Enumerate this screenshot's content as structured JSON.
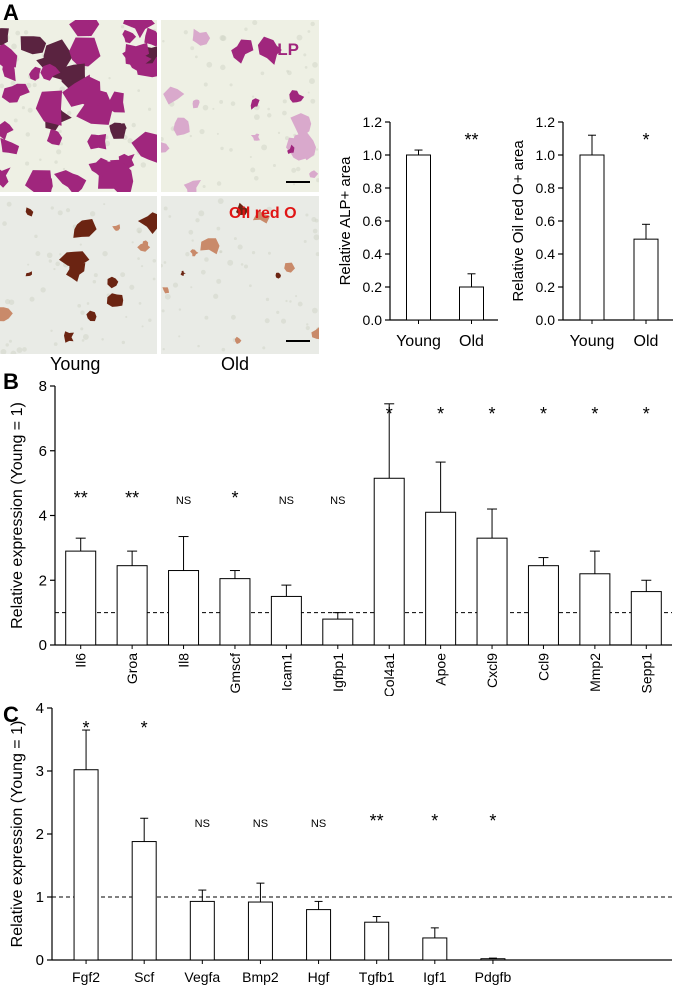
{
  "panel_labels": {
    "a": "A",
    "b": "B",
    "c": "C"
  },
  "micrographs": {
    "alp_label": "ALP",
    "oil_label": "Oil red O",
    "col_young": "Young",
    "col_old": "Old",
    "colors": {
      "alp_stain": "#a0267d",
      "alp_light": "#d9a9cc",
      "oil_stain": "#6b2412",
      "oil_light": "#c98a6a",
      "bg_alp": "#eef0e4",
      "bg_oil": "#e9ebe6",
      "alp_text": "#a0267d",
      "oil_text": "#e01515"
    }
  },
  "chart_data": [
    {
      "id": "alp",
      "type": "bar",
      "categories": [
        "Young",
        "Old"
      ],
      "values": [
        1.0,
        0.2
      ],
      "errors": [
        0.03,
        0.08
      ],
      "ylabel": "Relative ALP+ area",
      "ylim": [
        0,
        1.2
      ],
      "yticks": [
        "0.0",
        "0.2",
        "0.4",
        "0.6",
        "0.8",
        "1.0",
        "1.2"
      ],
      "annotations": [
        "",
        "**"
      ]
    },
    {
      "id": "oil",
      "type": "bar",
      "categories": [
        "Young",
        "Old"
      ],
      "values": [
        1.0,
        0.49
      ],
      "errors": [
        0.12,
        0.09
      ],
      "ylabel": "Relative Oil red O+ area",
      "ylim": [
        0,
        1.2
      ],
      "yticks": [
        "0.0",
        "0.2",
        "0.4",
        "0.6",
        "0.8",
        "1.0",
        "1.2"
      ],
      "annotations": [
        "",
        "*"
      ]
    },
    {
      "id": "b",
      "type": "bar",
      "categories": [
        "Il6",
        "Groa",
        "Il8",
        "Gmscf",
        "Icam1",
        "Igfbp1",
        "Col4a1",
        "Apoe",
        "Cxcl9",
        "Ccl9",
        "Mmp2",
        "Sepp1"
      ],
      "values": [
        2.9,
        2.45,
        2.3,
        2.05,
        1.5,
        0.8,
        5.15,
        4.1,
        3.3,
        2.45,
        2.2,
        1.65
      ],
      "errors": [
        0.4,
        0.45,
        1.05,
        0.25,
        0.35,
        0.2,
        2.3,
        1.55,
        0.9,
        0.25,
        0.7,
        0.35
      ],
      "annotations": [
        "**",
        "**",
        "NS",
        "*",
        "NS",
        "NS",
        "*",
        "*",
        "*",
        "*",
        "*",
        "*"
      ],
      "ylabel": "Relative expression (Young = 1)",
      "ylim": [
        0,
        8
      ],
      "yticks": [
        "0",
        "2",
        "4",
        "6",
        "8"
      ],
      "reference_line": 1
    },
    {
      "id": "c",
      "type": "bar",
      "categories": [
        "Fgf2",
        "Scf",
        "Vegfa",
        "Bmp2",
        "Hgf",
        "Tgfb1",
        "Igf1",
        "Pdgfb"
      ],
      "values": [
        3.02,
        1.88,
        0.93,
        0.92,
        0.8,
        0.6,
        0.35,
        0.02
      ],
      "errors": [
        0.63,
        0.37,
        0.18,
        0.3,
        0.13,
        0.09,
        0.16,
        0.01
      ],
      "annotations": [
        "*",
        "*",
        "NS",
        "NS",
        "NS",
        "**",
        "*",
        "*"
      ],
      "ylabel": "Relative expression (Young = 1)",
      "ylim": [
        0,
        4
      ],
      "yticks": [
        "0",
        "1",
        "2",
        "3",
        "4"
      ],
      "reference_line": 1
    }
  ]
}
